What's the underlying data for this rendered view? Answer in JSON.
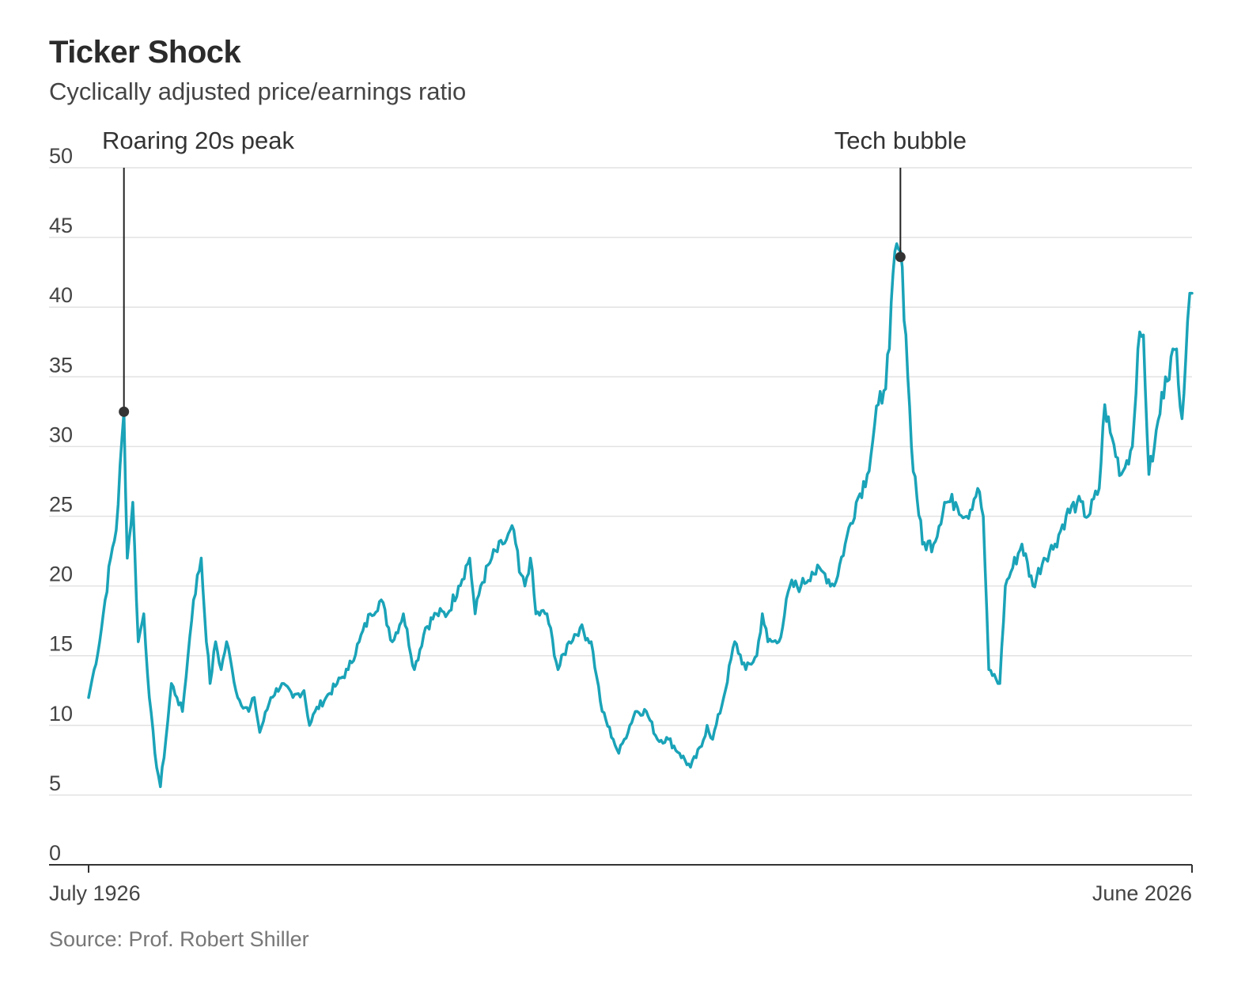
{
  "header": {
    "title": "Ticker Shock",
    "subtitle": "Cyclically adjusted price/earnings ratio"
  },
  "source": "Source: Prof. Robert Shiller",
  "colors": {
    "line": "#1aa3b8",
    "grid": "#e2e2e2",
    "axis": "#333333"
  },
  "chart_data": {
    "type": "line",
    "title": "Ticker Shock",
    "subtitle": "Cyclically adjusted price/earnings ratio",
    "ylim": [
      0,
      50
    ],
    "yticks": [
      0,
      5,
      10,
      15,
      20,
      25,
      30,
      35,
      40,
      45,
      50
    ],
    "xlim": [
      1926.5,
      2026.4
    ],
    "xtick_labels": [
      "July 1926",
      "June 2026"
    ],
    "grid": true,
    "series": [
      {
        "x": [
          1926.5,
          1927.0,
          1927.5,
          1928.0,
          1928.5,
          1929.0,
          1929.7,
          1930.0,
          1930.5,
          1931.0,
          1931.5,
          1932.0,
          1932.5,
          1933.0,
          1933.5,
          1934.0,
          1934.5,
          1935.0,
          1935.5,
          1936.0,
          1936.7,
          1937.0,
          1937.5,
          1938.0,
          1938.5,
          1939.0,
          1939.5,
          1940.0,
          1941.0,
          1941.5,
          1942.0,
          1943.0,
          1944.0,
          1945.0,
          1946.0,
          1946.5,
          1947.0,
          1948.0,
          1949.0,
          1950.0,
          1951.0,
          1952.0,
          1953.0,
          1954.0,
          1955.0,
          1956.0,
          1957.0,
          1958.0,
          1959.0,
          1960.0,
          1961.0,
          1961.5,
          1962.0,
          1963.0,
          1964.0,
          1965.0,
          1965.5,
          1966.0,
          1966.5,
          1967.0,
          1968.0,
          1969.0,
          1970.0,
          1971.0,
          1972.0,
          1972.5,
          1973.0,
          1974.0,
          1974.5,
          1975.0,
          1976.0,
          1977.0,
          1978.0,
          1979.0,
          1980.0,
          1981.0,
          1982.0,
          1982.5,
          1983.0,
          1984.0,
          1985.0,
          1986.0,
          1987.0,
          1987.5,
          1988.0,
          1989.0,
          1990.0,
          1991.0,
          1992.0,
          1993.0,
          1994.0,
          1995.0,
          1996.0,
          1997.0,
          1998.0,
          1998.5,
          1999.0,
          1999.5,
          2000.0,
          2000.5,
          2001.0,
          2002.0,
          2003.0,
          2004.0,
          2005.0,
          2006.0,
          2007.0,
          2007.5,
          2008.0,
          2009.0,
          2009.5,
          2010.0,
          2011.0,
          2012.0,
          2013.0,
          2014.0,
          2015.0,
          2016.0,
          2017.0,
          2018.0,
          2018.5,
          2019.0,
          2020.0,
          2020.5,
          2021.0,
          2021.5,
          2022.0,
          2022.5,
          2023.0,
          2024.0,
          2025.0,
          2025.5,
          2026.0,
          2026.4
        ],
        "values": [
          12,
          14,
          16,
          19,
          22,
          24,
          32.5,
          22,
          26,
          16,
          18,
          12,
          8,
          5.6,
          9,
          13,
          12,
          11,
          15,
          19,
          22,
          18,
          13,
          16,
          14,
          16,
          14,
          12,
          11,
          12,
          9.5,
          12,
          13,
          12,
          12.5,
          10,
          11,
          12,
          13,
          14,
          16,
          18,
          19,
          16,
          18,
          14,
          17,
          18,
          18,
          20,
          22,
          18,
          20,
          22,
          23,
          24,
          21,
          20,
          22,
          18,
          18,
          14,
          16,
          17,
          16,
          13.5,
          11,
          9,
          8,
          9,
          11,
          11,
          9,
          9,
          8,
          7,
          8.5,
          10,
          9,
          12,
          16,
          14,
          15,
          18,
          16,
          16,
          20,
          20,
          21,
          21,
          20,
          23,
          26,
          28,
          33,
          34,
          37,
          44,
          44,
          38,
          30,
          23,
          23,
          26,
          26,
          25,
          27,
          25,
          14,
          13,
          20,
          21,
          23,
          20,
          22,
          23,
          25,
          26,
          25,
          27,
          33,
          31,
          28,
          29,
          30,
          37,
          38,
          28,
          30,
          35,
          37,
          32,
          39,
          41
        ]
      }
    ],
    "annotations": [
      {
        "label": "Roaring 20s peak",
        "x": 1929.7,
        "y": 32.5
      },
      {
        "label": "Tech bubble",
        "x": 2000.0,
        "y": 43.6
      }
    ]
  }
}
